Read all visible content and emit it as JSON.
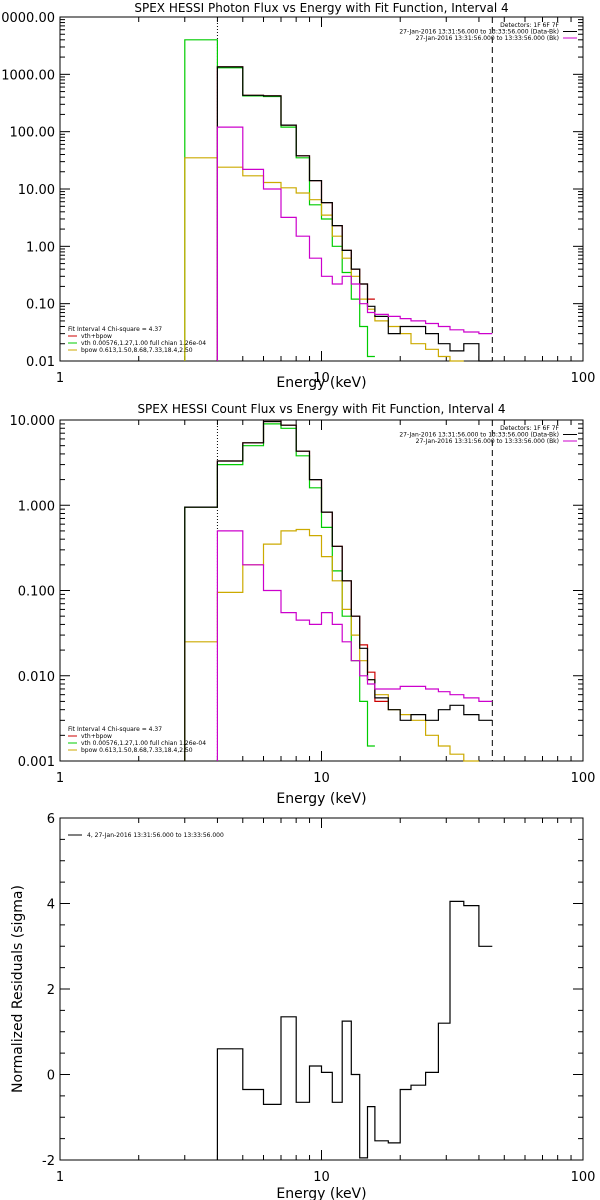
{
  "chart_data": [
    {
      "type": "line",
      "title": "SPEX HESSI Photon Flux vs Energy with Fit Function, Interval 4",
      "xlabel": "Energy (keV)",
      "ylabel": "",
      "xscale": "log",
      "yscale": "log",
      "xlim": [
        1,
        100
      ],
      "ylim": [
        0.01,
        10000
      ],
      "x_tick_labels": [
        "1",
        "10",
        "100"
      ],
      "y_tick_labels": [
        "0.01",
        "0.10",
        "1.00",
        "10.00",
        "100.00",
        "1000.00",
        "0000.00"
      ],
      "colors": {
        "data": "#000000",
        "total": "#cc0000",
        "vth": "#00cc00",
        "bpow": "#ccaa00",
        "resid": "#cc00cc"
      },
      "vlines": [
        {
          "x": 4.0,
          "style": "dotted"
        },
        {
          "x": 45.0,
          "style": "dashed"
        }
      ],
      "legend_top": [
        "Detectors: 1F 6F 7F",
        "27-Jan-2016 13:31:56.000 to 13:33:56.000 (Data-Bk)",
        "27-Jan-2016 13:31:56.000 to 13:33:56.000 (Bk)"
      ],
      "legend_bottom": [
        "Fit Interval 4   Chi-square = 4.37",
        "vth+bpow",
        "vth 0.00576,1.27,1.00  full chian 1.26e-04",
        "bpow 0.613,1.50,8.68,7.33,18.4,2.50"
      ],
      "x_edges": [
        3.0,
        4.0,
        5.0,
        6.0,
        7.0,
        8.0,
        9.0,
        10.0,
        11.0,
        12.0,
        13.0,
        14.0,
        15.0,
        16.0,
        18.0,
        20.0,
        22.0,
        25.0,
        28.0,
        31.0,
        35.0,
        40.0,
        45.0
      ],
      "series": [
        {
          "name": "vth+bpow",
          "color": "#cc0000",
          "values": [
            null,
            1350,
            430,
            420,
            130,
            38,
            14,
            5.8,
            2.3,
            0.85,
            0.4,
            0.22,
            0.12,
            null,
            null,
            null,
            null,
            null,
            null,
            null,
            null,
            null
          ]
        },
        {
          "name": "vth 0.00576,1.27,1.00  full chian 1.26e-04",
          "color": "#00cc00",
          "values": [
            4000,
            1300,
            420,
            410,
            120,
            35,
            5.3,
            3.0,
            1.0,
            0.35,
            0.12,
            0.04,
            0.012,
            null,
            null,
            null,
            null,
            null,
            null,
            null,
            null,
            null
          ]
        },
        {
          "name": "bpow 0.613,1.50,8.68,7.33,18.4,2.50",
          "color": "#ccaa00",
          "values": [
            35,
            24,
            17,
            13,
            10.5,
            8.5,
            6.5,
            3.5,
            1.5,
            0.62,
            0.3,
            0.12,
            0.08,
            0.05,
            0.04,
            0.03,
            0.02,
            0.016,
            0.012,
            0.01,
            null,
            null
          ]
        },
        {
          "name": "data",
          "color": "#000000",
          "values": [
            null,
            1350,
            430,
            420,
            130,
            38,
            14,
            5.8,
            2.3,
            0.85,
            0.4,
            0.22,
            0.09,
            0.06,
            0.03,
            0.04,
            0.04,
            0.03,
            0.02,
            0.015,
            0.02,
            0.01
          ]
        },
        {
          "name": "background",
          "color": "#cc00cc",
          "values": [
            null,
            120,
            22,
            10,
            3.2,
            1.5,
            0.62,
            0.3,
            0.22,
            0.3,
            0.22,
            0.1,
            0.07,
            0.065,
            0.06,
            0.055,
            0.05,
            0.045,
            0.04,
            0.035,
            0.032,
            0.03
          ]
        }
      ]
    },
    {
      "type": "line",
      "title": "SPEX HESSI Count Flux vs Energy with Fit Function, Interval 4",
      "xlabel": "Energy (keV)",
      "ylabel": "",
      "xscale": "log",
      "yscale": "log",
      "xlim": [
        1,
        100
      ],
      "ylim": [
        0.001,
        10
      ],
      "x_tick_labels": [
        "1",
        "10",
        "100"
      ],
      "y_tick_labels": [
        "0.001",
        "0.010",
        "0.100",
        "1.000",
        "10.000"
      ],
      "colors": {
        "data": "#000000",
        "total": "#cc0000",
        "vth": "#00cc00",
        "bpow": "#ccaa00",
        "resid": "#cc00cc"
      },
      "vlines": [
        {
          "x": 4.0,
          "style": "dotted"
        },
        {
          "x": 45.0,
          "style": "dashed"
        }
      ],
      "legend_top": [
        "Detectors: 1F 6F 7F",
        "27-Jan-2016 13:31:56.000 to 13:33:56.000 (Data-Bk)",
        "27-Jan-2016 13:31:56.000 to 13:33:56.000 (Bk)"
      ],
      "legend_bottom": [
        "Fit Interval 4   Chi-square = 4.37",
        "vth+bpow",
        "vth 0.00576,1.27,1.00  full chian 1.26e-04",
        "bpow 0.613,1.50,8.68,7.33,18.4,2.50"
      ],
      "x_edges": [
        3.0,
        4.0,
        5.0,
        6.0,
        7.0,
        8.0,
        9.0,
        10.0,
        11.0,
        12.0,
        13.0,
        14.0,
        15.0,
        16.0,
        18.0,
        20.0,
        22.0,
        25.0,
        28.0,
        31.0,
        35.0,
        40.0,
        45.0
      ],
      "series": [
        {
          "name": "vth+bpow",
          "color": "#cc0000",
          "values": [
            0.95,
            3.3,
            5.4,
            9.6,
            8.7,
            4.3,
            2.0,
            0.83,
            0.33,
            0.13,
            0.05,
            0.023,
            0.011,
            0.005,
            null,
            null,
            null,
            null,
            null,
            null,
            null,
            null
          ]
        },
        {
          "name": "vth 0.00576,1.27,1.00  full chian 1.26e-04",
          "color": "#00cc00",
          "values": [
            0.95,
            3.0,
            5.0,
            9.0,
            8.0,
            3.8,
            1.6,
            0.55,
            0.17,
            0.05,
            0.015,
            0.005,
            0.0015,
            null,
            null,
            null,
            null,
            null,
            null,
            null,
            null,
            null
          ]
        },
        {
          "name": "bpow 0.613,1.50,8.68,7.33,18.4,2.50",
          "color": "#ccaa00",
          "values": [
            0.025,
            0.095,
            0.2,
            0.35,
            0.5,
            0.52,
            0.44,
            0.25,
            0.13,
            0.06,
            0.03,
            0.015,
            0.009,
            0.006,
            0.004,
            0.0035,
            0.003,
            0.002,
            0.0015,
            0.0012,
            0.001,
            null
          ]
        },
        {
          "name": "data",
          "color": "#000000",
          "values": [
            0.95,
            3.3,
            5.4,
            9.6,
            8.7,
            4.3,
            2.0,
            0.83,
            0.33,
            0.13,
            0.05,
            0.021,
            0.009,
            0.0055,
            0.004,
            0.003,
            0.0035,
            0.003,
            0.004,
            0.0045,
            0.0035,
            0.003
          ]
        },
        {
          "name": "background",
          "color": "#cc00cc",
          "values": [
            null,
            0.5,
            0.2,
            0.1,
            0.055,
            0.045,
            0.04,
            0.055,
            0.04,
            0.025,
            0.015,
            0.01,
            0.008,
            0.007,
            0.007,
            0.0075,
            0.0075,
            0.007,
            0.0065,
            0.006,
            0.0055,
            0.005
          ]
        }
      ]
    },
    {
      "type": "line",
      "title": "",
      "xlabel": "Energy (keV)",
      "ylabel": "Normalized Residuals (sigma)",
      "xscale": "log",
      "yscale": "linear",
      "xlim": [
        1,
        100
      ],
      "ylim": [
        -2,
        6
      ],
      "x_tick_labels": [
        "1",
        "10",
        "100"
      ],
      "y_tick_labels": [
        "-2",
        "0",
        "2",
        "4",
        "6"
      ],
      "colors": {
        "data": "#000000",
        "total": "#cc0000",
        "vth": "#00cc00",
        "bpow": "#ccaa00",
        "resid": "#cc00cc"
      },
      "legend_top": [
        "4, 27-Jan-2016 13:31:56.000 to 13:33:56.000"
      ],
      "x_edges": [
        4.0,
        5.0,
        6.0,
        7.0,
        8.0,
        9.0,
        10.0,
        11.0,
        12.0,
        13.0,
        14.0,
        15.0,
        16.0,
        18.0,
        20.0,
        22.0,
        25.0,
        28.0,
        31.0,
        35.0,
        40.0,
        45.0
      ],
      "series": [
        {
          "name": "4, 27-Jan-2016 13:31:56.000 to 13:33:56.000",
          "color": "#000000",
          "values": [
            0.6,
            -0.35,
            -0.7,
            1.35,
            -0.65,
            0.2,
            0.05,
            -0.65,
            1.25,
            0.0,
            -1.95,
            -0.75,
            -1.55,
            -1.6,
            -0.35,
            -0.25,
            0.05,
            1.2,
            4.05,
            3.95,
            3.0
          ]
        }
      ]
    }
  ]
}
